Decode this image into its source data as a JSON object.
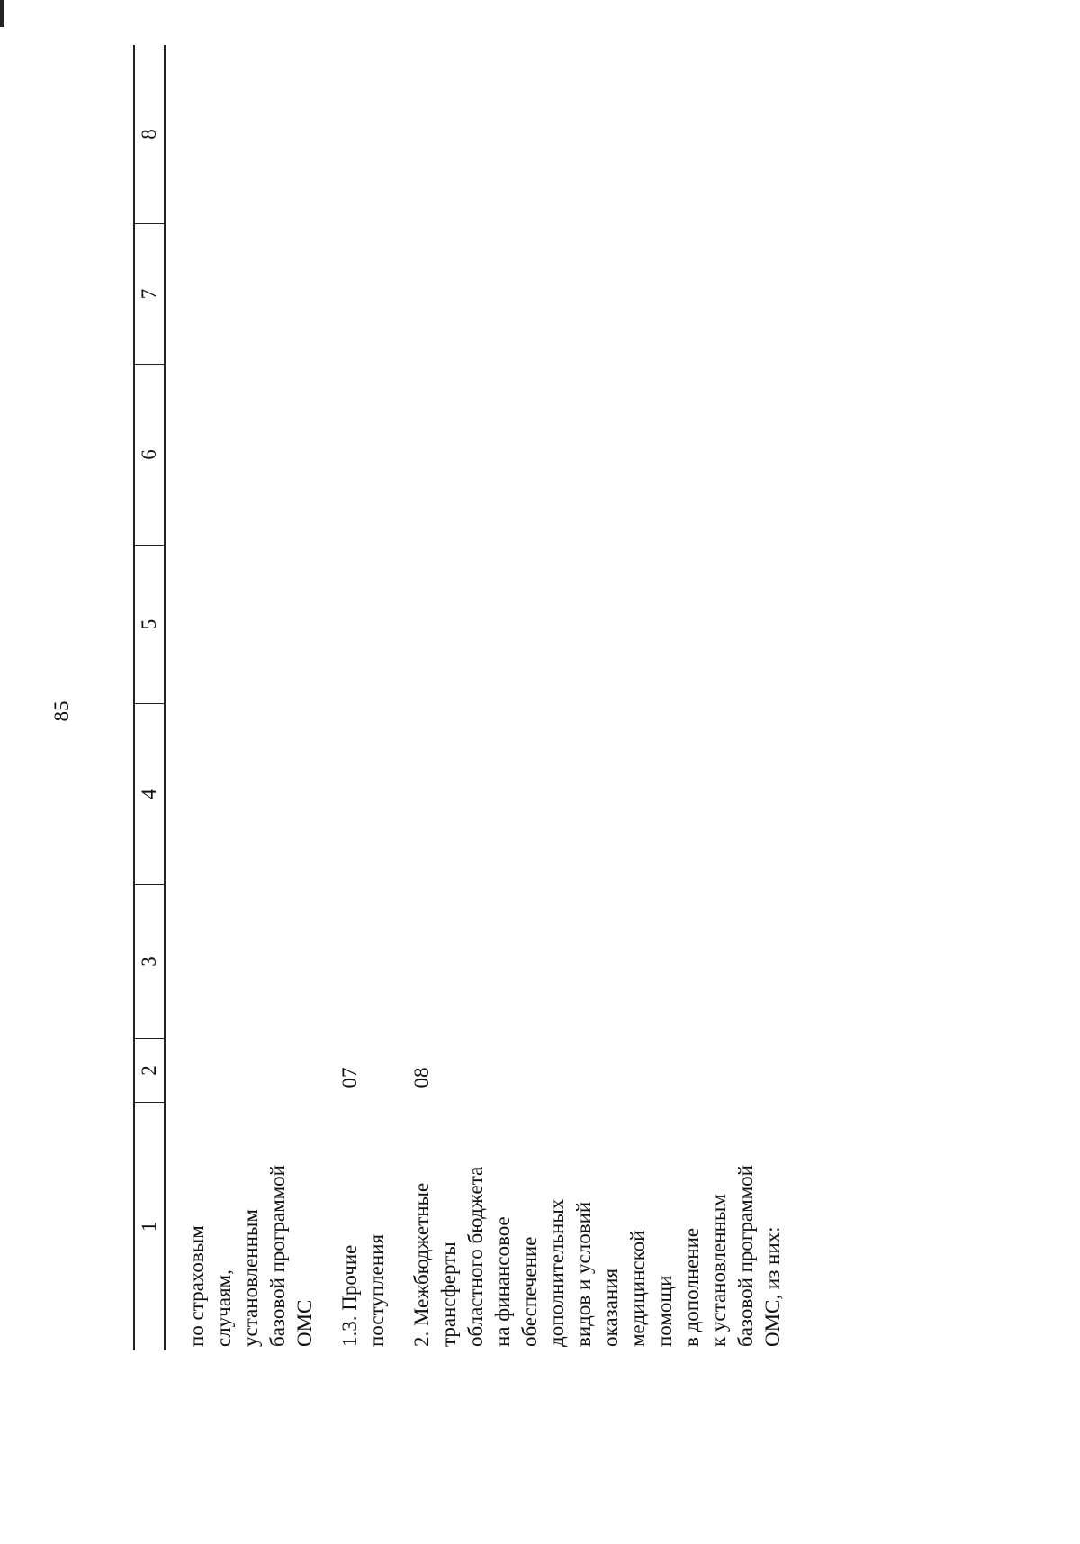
{
  "page_number": "85",
  "table": {
    "header": [
      "1",
      "2",
      "3",
      "4",
      "5",
      "6",
      "7",
      "8"
    ],
    "rows": [
      {
        "label_lines": [
          "по страховым",
          "случаям,",
          "установленным",
          "базовой программой",
          "ОМС"
        ],
        "code": null
      },
      {
        "label_lines": [
          "1.3. Прочие",
          "поступления"
        ],
        "code": "07"
      },
      {
        "label_lines": [
          "2. Межбюджетные",
          "трансферты",
          "областного бюджета",
          "на финансовое",
          "обеспечение",
          "дополнительных",
          "видов и условий",
          "оказания",
          "медицинской",
          "помощи",
          "в дополнение",
          "к установленным",
          "базовой программой",
          "ОМС, из них:"
        ],
        "code": "08"
      }
    ]
  }
}
